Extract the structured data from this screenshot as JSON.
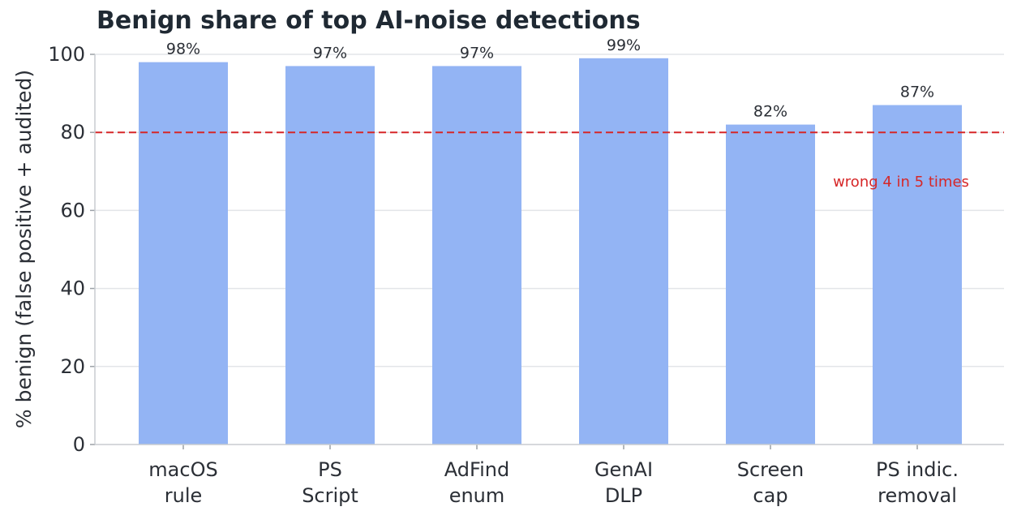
{
  "chart_data": {
    "type": "bar",
    "title": "Benign share of top AI-noise detections",
    "xlabel": "",
    "ylabel": "% benign (false positive + audited)",
    "categories": [
      [
        "macOS",
        "rule"
      ],
      [
        "PS",
        "Script"
      ],
      [
        "AdFind",
        "enum"
      ],
      [
        "GenAI",
        "DLP"
      ],
      [
        "Screen",
        "cap"
      ],
      [
        "PS indic.",
        "removal"
      ]
    ],
    "values": [
      98,
      97,
      97,
      99,
      82,
      87
    ],
    "data_labels": [
      "98%",
      "97%",
      "97%",
      "99%",
      "82%",
      "87%"
    ],
    "ylim": [
      0,
      100
    ],
    "yticks": [
      0,
      20,
      40,
      60,
      80,
      100
    ],
    "grid": "horizontal",
    "reference_line": {
      "y": 80,
      "style": "dashed",
      "color": "#d62728"
    },
    "annotation": {
      "text": "wrong 4 in 5 times",
      "color": "#d62728"
    },
    "bar_color": "#93b4f4"
  }
}
